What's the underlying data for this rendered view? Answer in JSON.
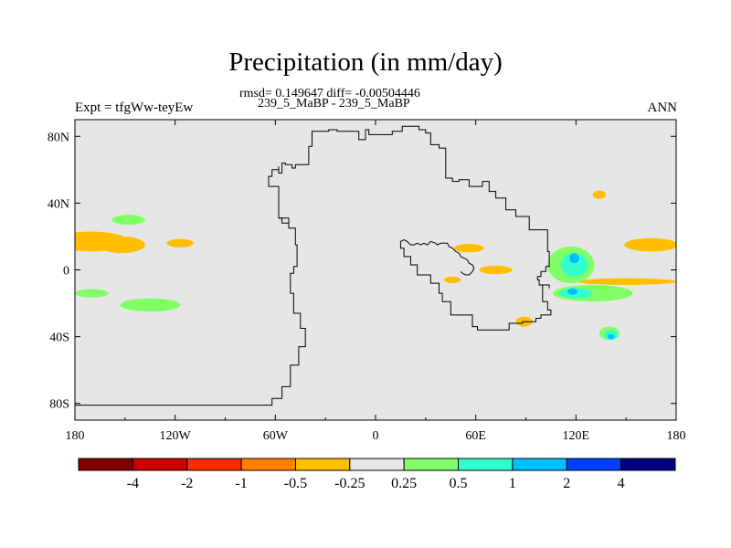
{
  "header": {
    "title": "Precipitation (in mm/day)",
    "stats": "rmsd= 0.149647 diff= -0.00504446",
    "case": "239_5_MaBP - 239_5_MaBP",
    "expt": "Expt = tfgWw-teyEw",
    "season": "ANN"
  },
  "chart_data": {
    "type": "heatmap",
    "title": "Precipitation (in mm/day)",
    "xlim": [
      -180,
      180
    ],
    "ylim": [
      -90,
      90
    ],
    "x_ticks": [
      {
        "value": -180,
        "label": "180"
      },
      {
        "value": -120,
        "label": "120W"
      },
      {
        "value": -60,
        "label": "60W"
      },
      {
        "value": 0,
        "label": "0"
      },
      {
        "value": 60,
        "label": "60E"
      },
      {
        "value": 120,
        "label": "120E"
      },
      {
        "value": 180,
        "label": "180"
      }
    ],
    "y_ticks": [
      {
        "value": 80,
        "label": "80N"
      },
      {
        "value": 40,
        "label": "40N"
      },
      {
        "value": 0,
        "label": "0"
      },
      {
        "value": -40,
        "label": "40S"
      },
      {
        "value": -80,
        "label": "80S"
      }
    ],
    "background_color": "#e6e6e6",
    "colorbar": {
      "colors": [
        "#800000",
        "#cc0000",
        "#ff2a00",
        "#ff7f00",
        "#ffbf00",
        "#e6e6e6",
        "#80ff66",
        "#33ffcc",
        "#00bfff",
        "#0040ff",
        "#000080"
      ],
      "labels": [
        "-4",
        "-2",
        "-1",
        "-0.5",
        "-0.25",
        "0.25",
        "0.5",
        "1",
        "2",
        "4"
      ]
    },
    "regions": [
      {
        "level": "-0.25 to -0.5",
        "color": "#ffbf00",
        "lon": -170,
        "lat": 17,
        "dlon": 22,
        "dlat": 6
      },
      {
        "level": "-0.25 to -0.5",
        "color": "#ffbf00",
        "lon": -152,
        "lat": 15,
        "dlon": 14,
        "dlat": 5
      },
      {
        "level": "-0.25 to -0.5",
        "color": "#ffbf00",
        "lon": -117,
        "lat": 16,
        "dlon": 8,
        "dlat": 2.5
      },
      {
        "level": "0.25 to 0.5",
        "color": "#80ff66",
        "lon": -148,
        "lat": 30,
        "dlon": 10,
        "dlat": 3
      },
      {
        "level": "0.25 to 0.5",
        "color": "#80ff66",
        "lon": -170,
        "lat": -14,
        "dlon": 10,
        "dlat": 2.5
      },
      {
        "level": "0.25 to 0.5",
        "color": "#80ff66",
        "lon": -135,
        "lat": -21,
        "dlon": 18,
        "dlat": 4
      },
      {
        "level": "-0.25 to -0.5",
        "color": "#ffbf00",
        "lon": 56,
        "lat": 13,
        "dlon": 9,
        "dlat": 2.5
      },
      {
        "level": "-0.25 to -0.5",
        "color": "#ffbf00",
        "lon": 72,
        "lat": 0,
        "dlon": 10,
        "dlat": 2.5
      },
      {
        "level": "-0.25 to -0.5",
        "color": "#ffbf00",
        "lon": 46,
        "lat": -6,
        "dlon": 5,
        "dlat": 2
      },
      {
        "level": "-0.25 to -0.5",
        "color": "#ffbf00",
        "lon": 89,
        "lat": -31,
        "dlon": 5,
        "dlat": 3
      },
      {
        "level": "-0.25 to -0.5",
        "color": "#ffbf00",
        "lon": 134,
        "lat": 45,
        "dlon": 4,
        "dlat": 2.5
      },
      {
        "level": "-0.25 to -0.5",
        "color": "#ffbf00",
        "lon": 165,
        "lat": 15,
        "dlon": 16,
        "dlat": 4
      },
      {
        "level": "-0.25 to -0.5",
        "color": "#ffbf00",
        "lon": 150,
        "lat": -7,
        "dlon": 30,
        "dlat": 2
      },
      {
        "level": "0.25 to 0.5",
        "color": "#80ff66",
        "lon": 117,
        "lat": 3,
        "dlon": 14,
        "dlat": 11
      },
      {
        "level": "0.25 to 0.5",
        "color": "#80ff66",
        "lon": 130,
        "lat": -14,
        "dlon": 24,
        "dlat": 5
      },
      {
        "level": "0.25 to 0.5",
        "color": "#80ff66",
        "lon": 140,
        "lat": -38,
        "dlon": 6,
        "dlat": 4
      },
      {
        "level": "0.5 to 1",
        "color": "#33ffcc",
        "lon": 119,
        "lat": 3,
        "dlon": 8,
        "dlat": 7
      },
      {
        "level": "0.5 to 1",
        "color": "#33ffcc",
        "lon": 120,
        "lat": -14,
        "dlon": 10,
        "dlat": 3
      },
      {
        "level": "0.5 to 1",
        "color": "#33ffcc",
        "lon": 141,
        "lat": -39,
        "dlon": 4,
        "dlat": 3
      },
      {
        "level": "1 to 2",
        "color": "#00bfff",
        "lon": 119,
        "lat": 7,
        "dlon": 3,
        "dlat": 3
      },
      {
        "level": "1 to 2",
        "color": "#00bfff",
        "lon": 118,
        "lat": -13,
        "dlon": 3,
        "dlat": 2
      },
      {
        "level": "1 to 2",
        "color": "#00bfff",
        "lon": 141,
        "lat": -40,
        "dlon": 2,
        "dlat": 1.5
      }
    ],
    "coastline": [
      [
        [
          -180,
          -81
        ],
        [
          -62,
          -81
        ],
        [
          -62,
          -77
        ],
        [
          -56,
          -77
        ],
        [
          -56,
          -70
        ],
        [
          -51,
          -70
        ],
        [
          -51,
          -57
        ],
        [
          -46,
          -57
        ],
        [
          -46,
          -46
        ],
        [
          -42,
          -46
        ],
        [
          -42,
          -35
        ],
        [
          -45,
          -35
        ],
        [
          -45,
          -26
        ],
        [
          -49,
          -26
        ],
        [
          -49,
          -14
        ],
        [
          -51,
          -14
        ],
        [
          -51,
          -2
        ],
        [
          -49,
          -2
        ],
        [
          -49,
          2
        ],
        [
          -47,
          2
        ],
        [
          -47,
          15
        ],
        [
          -48,
          15
        ],
        [
          -48,
          25
        ],
        [
          -52,
          25
        ],
        [
          -52,
          31
        ],
        [
          -58,
          31
        ],
        [
          -58,
          50
        ],
        [
          -64,
          50
        ],
        [
          -64,
          56
        ],
        [
          -62,
          56
        ],
        [
          -62,
          60
        ],
        [
          -58,
          60
        ],
        [
          -58,
          58
        ],
        [
          -56,
          58
        ],
        [
          -56,
          64
        ],
        [
          -54,
          64
        ],
        [
          -54,
          63
        ],
        [
          -50,
          63
        ],
        [
          -50,
          61
        ],
        [
          -48,
          61
        ],
        [
          -48,
          63
        ],
        [
          -40,
          63
        ],
        [
          -40,
          74
        ],
        [
          -38,
          74
        ],
        [
          -38,
          79
        ],
        [
          -38,
          83
        ],
        [
          -28,
          83
        ],
        [
          -28,
          84
        ],
        [
          -23,
          84
        ],
        [
          -23,
          83
        ],
        [
          -10,
          83
        ],
        [
          -10,
          78
        ],
        [
          -6,
          78
        ],
        [
          -6,
          84
        ],
        [
          -4,
          84
        ],
        [
          -4,
          81
        ],
        [
          10,
          81
        ],
        [
          10,
          83
        ],
        [
          16,
          83
        ],
        [
          16,
          86
        ],
        [
          26,
          86
        ],
        [
          26,
          84
        ],
        [
          30,
          84
        ],
        [
          30,
          82
        ],
        [
          33,
          82
        ],
        [
          33,
          75
        ],
        [
          38,
          75
        ],
        [
          38,
          73
        ],
        [
          42,
          73
        ],
        [
          42,
          59
        ],
        [
          42,
          55
        ],
        [
          46,
          55
        ],
        [
          46,
          53
        ],
        [
          50,
          53
        ],
        [
          50,
          54
        ],
        [
          56,
          54
        ],
        [
          56,
          50
        ],
        [
          64,
          50
        ],
        [
          64,
          53
        ],
        [
          68,
          53
        ],
        [
          68,
          47
        ],
        [
          72,
          47
        ],
        [
          72,
          43
        ],
        [
          78,
          43
        ],
        [
          78,
          36
        ],
        [
          84,
          36
        ],
        [
          84,
          32
        ],
        [
          92,
          32
        ],
        [
          92,
          24
        ],
        [
          103,
          24
        ],
        [
          103,
          11
        ],
        [
          104,
          11
        ],
        [
          104,
          2
        ],
        [
          102,
          2
        ],
        [
          102,
          -1
        ],
        [
          99,
          -1
        ],
        [
          99,
          -4
        ],
        [
          97,
          -4
        ],
        [
          97,
          -6
        ],
        [
          98,
          -6
        ],
        [
          98,
          -9
        ],
        [
          100,
          -9
        ],
        [
          100,
          -19
        ],
        [
          103,
          -19
        ],
        [
          103,
          -24
        ],
        [
          105,
          -24
        ],
        [
          105,
          -27
        ],
        [
          99,
          -27
        ],
        [
          99,
          -29
        ],
        [
          96,
          -29
        ],
        [
          96,
          -31
        ],
        [
          88,
          -31
        ],
        [
          88,
          -32
        ],
        [
          80,
          -32
        ],
        [
          80,
          -36
        ],
        [
          61,
          -36
        ],
        [
          61,
          -34
        ],
        [
          58,
          -34
        ],
        [
          58,
          -27
        ],
        [
          45,
          -27
        ],
        [
          45,
          -19
        ],
        [
          40,
          -19
        ],
        [
          40,
          -14
        ],
        [
          38,
          -14
        ],
        [
          38,
          -8
        ],
        [
          33,
          -8
        ],
        [
          33,
          -3
        ],
        [
          25,
          -3
        ],
        [
          25,
          3
        ],
        [
          21,
          3
        ],
        [
          21,
          8
        ],
        [
          17,
          8
        ],
        [
          17,
          13
        ],
        [
          15,
          13
        ],
        [
          15,
          17
        ]
      ]
    ],
    "coast_extra": [
      [
        [
          15,
          17
        ],
        [
          17,
          18
        ],
        [
          19,
          17
        ],
        [
          21,
          15
        ],
        [
          23,
          15
        ],
        [
          25,
          16
        ],
        [
          27,
          15
        ],
        [
          29,
          16
        ],
        [
          31,
          15
        ],
        [
          33,
          17
        ],
        [
          36,
          16
        ],
        [
          37,
          15
        ],
        [
          39,
          16
        ],
        [
          43,
          16
        ],
        [
          44,
          14
        ],
        [
          46,
          13
        ],
        [
          48,
          11
        ],
        [
          50,
          10
        ],
        [
          51,
          8
        ],
        [
          53,
          7
        ],
        [
          55,
          6
        ],
        [
          56,
          4
        ],
        [
          58,
          3
        ],
        [
          59,
          1
        ],
        [
          58,
          -1
        ],
        [
          56,
          -3
        ],
        [
          54,
          -3
        ],
        [
          52,
          -2
        ],
        [
          51,
          -1
        ]
      ],
      [
        [
          -58,
          31
        ],
        [
          -56,
          31
        ],
        [
          -56,
          28
        ],
        [
          -52,
          28
        ]
      ],
      [
        [
          -58,
          62
        ],
        [
          -58,
          60
        ]
      ],
      [
        [
          100,
          -9
        ],
        [
          104,
          -9
        ],
        [
          104,
          -11
        ]
      ]
    ]
  },
  "sidebar": {}
}
